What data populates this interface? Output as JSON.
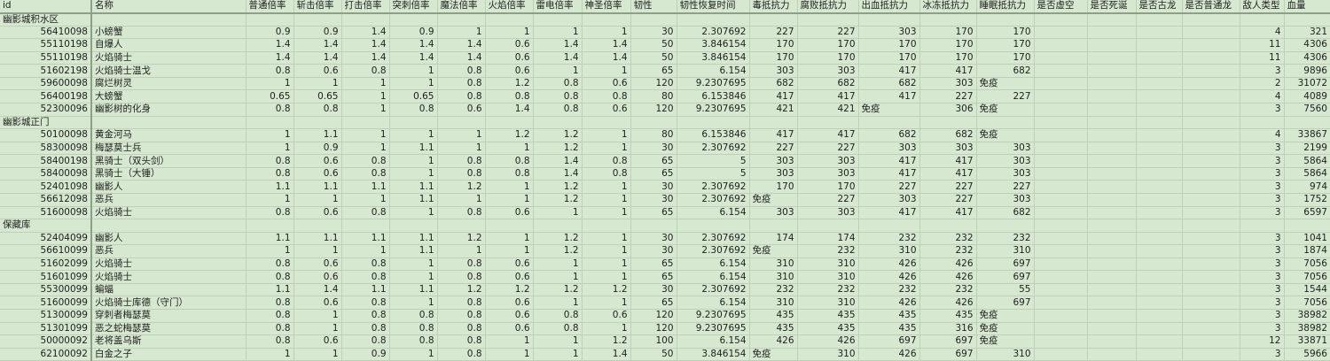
{
  "colors": {
    "cell_background": "#d7e8d1",
    "gridline": "#bfcfba",
    "frozen_divider": "#8d9e89",
    "text": "#1e1e1e"
  },
  "table": {
    "immune_label": "免疫",
    "columns": [
      {
        "key": "id",
        "label": "id"
      },
      {
        "key": "name",
        "label": "名称"
      },
      {
        "key": "normal",
        "label": "普通倍率"
      },
      {
        "key": "slash",
        "label": "斩击倍率"
      },
      {
        "key": "strike",
        "label": "打击倍率"
      },
      {
        "key": "pierce",
        "label": "突刺倍率"
      },
      {
        "key": "magic",
        "label": "魔法倍率"
      },
      {
        "key": "fire",
        "label": "火焰倍率"
      },
      {
        "key": "lightning",
        "label": "雷电倍率"
      },
      {
        "key": "holy",
        "label": "神圣倍率"
      },
      {
        "key": "poise",
        "label": "韧性"
      },
      {
        "key": "poise_recovery",
        "label": "韧性恢复时间"
      },
      {
        "key": "poison",
        "label": "毒抵抗力"
      },
      {
        "key": "rot",
        "label": "腐败抵抗力"
      },
      {
        "key": "bleed",
        "label": "出血抵抗力"
      },
      {
        "key": "frost",
        "label": "冰冻抵抗力"
      },
      {
        "key": "sleep",
        "label": "睡眠抵抗力"
      },
      {
        "key": "is_void",
        "label": "是否虚空"
      },
      {
        "key": "is_deathblight",
        "label": "是否死诞"
      },
      {
        "key": "is_ancient_dragon",
        "label": "是否古龙"
      },
      {
        "key": "is_dragon",
        "label": "是否普通龙"
      },
      {
        "key": "enemy_type",
        "label": "敌人类型"
      },
      {
        "key": "hp",
        "label": "血量"
      }
    ],
    "sections": [
      {
        "name": "幽影城积水区",
        "rows": [
          [
            "56410098",
            "小螃蟹",
            "0.9",
            "0.9",
            "1.4",
            "0.9",
            "1",
            "1",
            "1",
            "1",
            "30",
            "2.307692",
            "227",
            "227",
            "303",
            "170",
            "170",
            "",
            "",
            "",
            "",
            "4",
            "321"
          ],
          [
            "55110198",
            "自爆人",
            "1.4",
            "1.4",
            "1.4",
            "1.4",
            "1.4",
            "0.6",
            "1.4",
            "1.4",
            "50",
            "3.846154",
            "170",
            "170",
            "170",
            "170",
            "170",
            "",
            "",
            "",
            "",
            "11",
            "4306"
          ],
          [
            "55110198",
            "火焰骑士",
            "1.4",
            "1.4",
            "1.4",
            "1.4",
            "1.4",
            "0.6",
            "1.4",
            "1.4",
            "50",
            "3.846154",
            "170",
            "170",
            "170",
            "170",
            "170",
            "",
            "",
            "",
            "",
            "11",
            "4306"
          ],
          [
            "51602198",
            "火焰骑士温戈",
            "0.8",
            "0.6",
            "0.8",
            "1",
            "0.8",
            "0.6",
            "1",
            "1",
            "65",
            "6.154",
            "303",
            "303",
            "417",
            "417",
            "682",
            "",
            "",
            "",
            "",
            "3",
            "9896"
          ],
          [
            "59600098",
            "腐烂树灵",
            "1",
            "1",
            "1",
            "1",
            "0.8",
            "1.2",
            "0.8",
            "0.6",
            "120",
            "9.2307695",
            "682",
            "682",
            "682",
            "303",
            "免疫",
            "",
            "",
            "",
            "",
            "2",
            "31072"
          ],
          [
            "56400198",
            "大螃蟹",
            "0.65",
            "0.65",
            "1",
            "0.65",
            "0.8",
            "0.8",
            "0.8",
            "0.8",
            "80",
            "6.153846",
            "417",
            "417",
            "417",
            "227",
            "227",
            "",
            "",
            "",
            "",
            "4",
            "4089"
          ],
          [
            "52300096",
            "幽影树的化身",
            "0.8",
            "0.8",
            "1",
            "0.8",
            "0.6",
            "1.4",
            "0.8",
            "0.6",
            "120",
            "9.2307695",
            "421",
            "421",
            "免疫",
            "306",
            "免疫",
            "",
            "",
            "",
            "",
            "3",
            "7560"
          ]
        ]
      },
      {
        "name": "幽影城正门",
        "rows": [
          [
            "50100098",
            "黄金河马",
            "1",
            "1.1",
            "1",
            "1",
            "1",
            "1.2",
            "1.2",
            "1",
            "80",
            "6.153846",
            "417",
            "417",
            "682",
            "682",
            "免疫",
            "",
            "",
            "",
            "",
            "4",
            "33867"
          ],
          [
            "58300098",
            "梅瑟莫士兵",
            "1",
            "0.9",
            "1",
            "1.1",
            "1",
            "1",
            "1.2",
            "1",
            "30",
            "2.307692",
            "227",
            "227",
            "303",
            "303",
            "303",
            "",
            "",
            "",
            "",
            "3",
            "2199"
          ],
          [
            "58400198",
            "黑骑士（双头剑）",
            "0.8",
            "0.6",
            "0.8",
            "1",
            "0.8",
            "0.8",
            "1.4",
            "0.8",
            "65",
            "5",
            "303",
            "303",
            "417",
            "417",
            "303",
            "",
            "",
            "",
            "",
            "3",
            "5864"
          ],
          [
            "58400098",
            "黑骑士（大锤）",
            "0.8",
            "0.6",
            "0.8",
            "1",
            "0.8",
            "0.8",
            "1.4",
            "0.8",
            "65",
            "5",
            "303",
            "303",
            "417",
            "417",
            "303",
            "",
            "",
            "",
            "",
            "3",
            "5864"
          ],
          [
            "52401098",
            "幽影人",
            "1.1",
            "1.1",
            "1.1",
            "1.1",
            "1.2",
            "1",
            "1.2",
            "1",
            "30",
            "2.307692",
            "170",
            "170",
            "227",
            "227",
            "227",
            "",
            "",
            "",
            "",
            "3",
            "974"
          ],
          [
            "56612098",
            "恶兵",
            "1",
            "1",
            "1",
            "1.1",
            "1",
            "1",
            "1.2",
            "1",
            "30",
            "2.307692",
            "免疫",
            "227",
            "303",
            "227",
            "303",
            "",
            "",
            "",
            "",
            "3",
            "1752"
          ],
          [
            "51600098",
            "火焰骑士",
            "0.8",
            "0.6",
            "0.8",
            "1",
            "0.8",
            "0.6",
            "1",
            "1",
            "65",
            "6.154",
            "303",
            "303",
            "417",
            "417",
            "682",
            "",
            "",
            "",
            "",
            "3",
            "6597"
          ]
        ]
      },
      {
        "name": "保藏库",
        "rows": [
          [
            "52404099",
            "幽影人",
            "1.1",
            "1.1",
            "1.1",
            "1.1",
            "1.2",
            "1",
            "1.2",
            "1",
            "30",
            "2.307692",
            "174",
            "174",
            "232",
            "232",
            "232",
            "",
            "",
            "",
            "",
            "3",
            "1041"
          ],
          [
            "56610099",
            "恶兵",
            "1",
            "1",
            "1",
            "1.1",
            "1",
            "1",
            "1.2",
            "1",
            "30",
            "2.307692",
            "免疫",
            "232",
            "310",
            "232",
            "310",
            "",
            "",
            "",
            "",
            "3",
            "1874"
          ],
          [
            "51602099",
            "火焰骑士",
            "0.8",
            "0.6",
            "0.8",
            "1",
            "0.8",
            "0.6",
            "1",
            "1",
            "65",
            "6.154",
            "310",
            "310",
            "426",
            "426",
            "697",
            "",
            "",
            "",
            "",
            "3",
            "7056"
          ],
          [
            "51601099",
            "火焰骑士",
            "0.8",
            "0.6",
            "0.8",
            "1",
            "0.8",
            "0.6",
            "1",
            "1",
            "65",
            "6.154",
            "310",
            "310",
            "426",
            "426",
            "697",
            "",
            "",
            "",
            "",
            "3",
            "7056"
          ],
          [
            "55300099",
            "蝙蝠",
            "1.1",
            "1.4",
            "1.1",
            "1.1",
            "1.2",
            "1.2",
            "1.2",
            "1.2",
            "30",
            "2.307692",
            "232",
            "232",
            "232",
            "232",
            "55",
            "",
            "",
            "",
            "",
            "3",
            "1544"
          ],
          [
            "51600099",
            "火焰骑士库德（守门）",
            "0.8",
            "0.6",
            "0.8",
            "1",
            "0.8",
            "0.6",
            "1",
            "1",
            "65",
            "6.154",
            "310",
            "310",
            "426",
            "426",
            "697",
            "",
            "",
            "",
            "",
            "3",
            "7056"
          ],
          [
            "51300099",
            "穿刺者梅瑟莫",
            "0.8",
            "1",
            "0.8",
            "0.8",
            "0.8",
            "0.6",
            "0.8",
            "0.6",
            "120",
            "9.2307695",
            "435",
            "435",
            "435",
            "435",
            "免疫",
            "",
            "",
            "",
            "",
            "3",
            "38982"
          ],
          [
            "51301099",
            "恶之蛇梅瑟莫",
            "0.8",
            "1",
            "0.8",
            "0.8",
            "0.8",
            "0.6",
            "0.8",
            "1",
            "120",
            "9.2307695",
            "435",
            "435",
            "435",
            "316",
            "免疫",
            "",
            "",
            "",
            "",
            "3",
            "38982"
          ],
          [
            "50000092",
            "老将盖乌斯",
            "0.8",
            "0.6",
            "0.8",
            "0.8",
            "0.8",
            "1",
            "1",
            "1.2",
            "100",
            "6.154",
            "426",
            "426",
            "697",
            "697",
            "免疫",
            "",
            "",
            "",
            "",
            "12",
            "33871"
          ],
          [
            "62100092",
            "白金之子",
            "1",
            "1",
            "0.9",
            "1",
            "0.8",
            "1",
            "1",
            "1.4",
            "50",
            "3.846154",
            "免疫",
            "310",
            "426",
            "697",
            "310",
            "",
            "",
            "",
            "",
            "3",
            "5966"
          ]
        ]
      }
    ]
  }
}
